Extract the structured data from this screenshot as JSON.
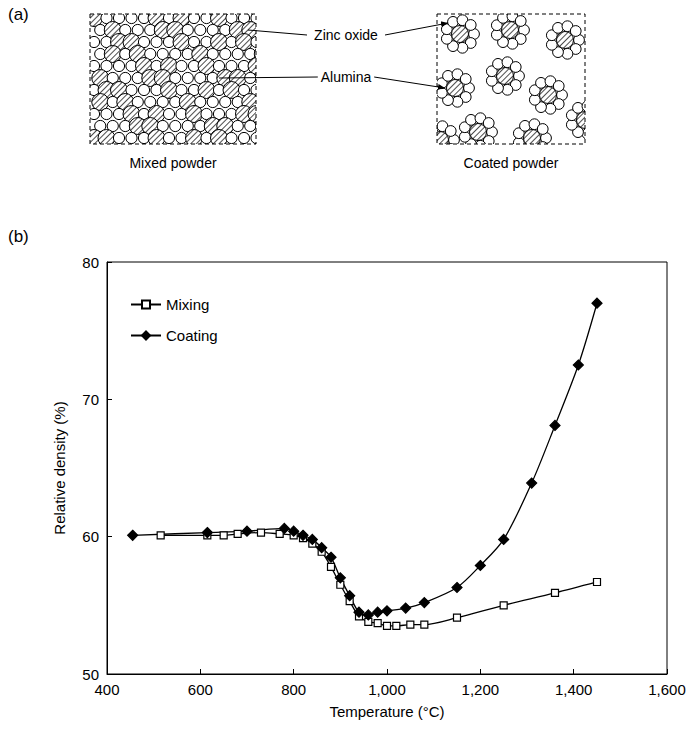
{
  "diagram": {
    "panel": "(a)",
    "left_caption": "Mixed powder",
    "right_caption": "Coated powder",
    "labels": [
      "Zinc oxide",
      "Alumina"
    ]
  },
  "chart_data": {
    "type": "line",
    "panel": "(b)",
    "x_label": "Temperature (°C)",
    "y_label": "Relative density (%)",
    "xlim": [
      400,
      1600
    ],
    "xticks": [
      400,
      600,
      800,
      1000,
      1200,
      1400,
      1600
    ],
    "ylim": [
      50,
      80
    ],
    "yticks": [
      50,
      60,
      70,
      80
    ],
    "grid": false,
    "legend": "upper left",
    "series": [
      {
        "name": "Mixing",
        "color": "#000000",
        "marker": "square",
        "x": [
          515,
          615,
          650,
          680,
          730,
          770,
          800,
          820,
          840,
          860,
          880,
          900,
          920,
          940,
          960,
          980,
          1000,
          1020,
          1050,
          1080,
          1150,
          1250,
          1360,
          1450
        ],
        "values": [
          60.1,
          60.1,
          60.1,
          60.2,
          60.3,
          60.2,
          60.1,
          59.9,
          59.5,
          58.9,
          57.8,
          56.5,
          55.3,
          54.2,
          53.8,
          53.7,
          53.5,
          53.5,
          53.6,
          53.6,
          54.1,
          55.0,
          55.9,
          56.7
        ]
      },
      {
        "name": "Coating",
        "color": "#000000",
        "marker": "diamond",
        "x": [
          455,
          615,
          700,
          780,
          800,
          820,
          840,
          860,
          880,
          900,
          920,
          940,
          960,
          980,
          1000,
          1040,
          1080,
          1150,
          1200,
          1250,
          1310,
          1360,
          1410,
          1450
        ],
        "values": [
          60.1,
          60.3,
          60.4,
          60.6,
          60.4,
          60.1,
          59.8,
          59.2,
          58.5,
          57.0,
          55.7,
          54.5,
          54.3,
          54.5,
          54.6,
          54.8,
          55.2,
          56.3,
          57.9,
          59.8,
          63.9,
          68.1,
          72.5,
          77.0
        ]
      }
    ]
  }
}
